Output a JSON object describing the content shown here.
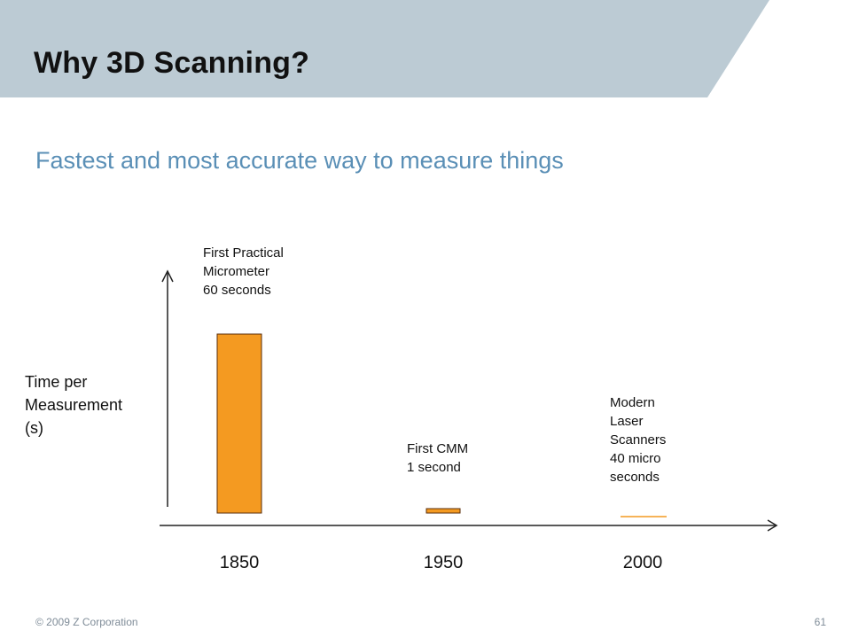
{
  "slide": {
    "title": "Why 3D Scanning?",
    "subtitle": "Fastest and most accurate way to measure things"
  },
  "colors": {
    "header_band": "#bccbd4",
    "subtitle_text": "#5a8fb6",
    "bar_fill": "#f49a21",
    "bar_stroke": "#5a2d0a"
  },
  "chart_data": {
    "type": "bar",
    "categories": [
      "1850",
      "1950",
      "2000"
    ],
    "values": [
      60,
      1,
      4e-05
    ],
    "ylabel_lines": [
      "Time per",
      "Measurement",
      "(s)"
    ],
    "annotations": [
      {
        "lines": [
          "First Practical",
          "Micrometer",
          "60 seconds"
        ]
      },
      {
        "lines": [
          "First CMM",
          "1 second"
        ]
      },
      {
        "lines": [
          "Modern",
          "Laser",
          "Scanners",
          "40 micro",
          "seconds"
        ]
      }
    ],
    "grid": false,
    "legend": "none"
  },
  "footer": {
    "copyright": "© 2009 Z Corporation",
    "page_number": "61"
  }
}
